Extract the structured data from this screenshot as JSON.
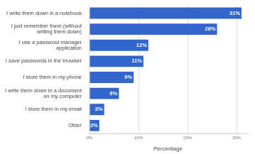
{
  "chart_data": {
    "type": "bar",
    "orientation": "horizontal",
    "categories": [
      "I write them down in a notebook",
      "I just remember them (without writing them down)",
      "I use a password manager application",
      "I save passwords in the browser",
      "I store them in my phone",
      "I write them down in a document on my computer",
      "I store them in my email",
      "Other"
    ],
    "values": [
      31,
      26,
      12,
      11,
      9,
      6,
      3,
      2
    ],
    "value_labels": [
      "31%",
      "26%",
      "12%",
      "11%",
      "9%",
      "6%",
      "3%",
      "2%"
    ],
    "data_labels": true,
    "color": "#3366cc",
    "x_label": "Percentage",
    "xlim": [
      0,
      32
    ],
    "xticks": [
      {
        "value": 0,
        "label": "0%"
      },
      {
        "value": 10,
        "label": "10%"
      },
      {
        "value": 20,
        "label": "20%"
      },
      {
        "value": 30,
        "label": "30%"
      }
    ],
    "grid": true
  }
}
